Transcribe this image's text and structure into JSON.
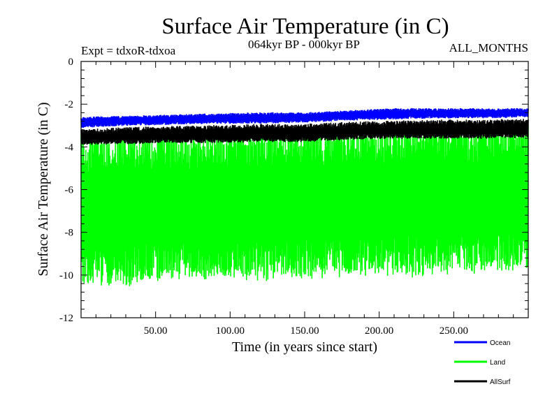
{
  "chart_data": {
    "type": "line",
    "title": "Surface Air Temperature (in C)",
    "subtitle_left": "Expt = tdxoR-tdxoa",
    "subtitle_center": "064kyr BP - 000kyr BP",
    "subtitle_right": "ALL_MONTHS",
    "xlabel": "Time (in years since start)",
    "ylabel": "Surface Air Temperature (in C)",
    "xlim": [
      0,
      300
    ],
    "ylim": [
      -12,
      0
    ],
    "x_ticks": [
      50,
      100,
      150,
      200,
      250
    ],
    "x_tick_labels": [
      "50.00",
      "100.00",
      "150.00",
      "200.00",
      "250.00"
    ],
    "y_ticks": [
      0,
      -2,
      -4,
      -6,
      -8,
      -10,
      -12
    ],
    "y_tick_labels": [
      "0",
      "-2",
      "-4",
      "-6",
      "-8",
      "-10",
      "-12"
    ],
    "grid": false,
    "legend_position": "bottom-right, below plot",
    "series": [
      {
        "name": "Land",
        "color": "#00ff00",
        "upper_x": [
          0,
          30,
          60,
          90,
          120,
          150,
          180,
          210,
          240,
          270,
          300
        ],
        "upper_y": [
          -3.6,
          -3.5,
          -3.5,
          -3.4,
          -3.3,
          -3.3,
          -3.2,
          -3.2,
          -3.1,
          -3.1,
          -3.1
        ],
        "lower_x": [
          0,
          30,
          60,
          90,
          120,
          150,
          180,
          210,
          240,
          270,
          300
        ],
        "lower_y": [
          -10.3,
          -10.3,
          -10.1,
          -10.0,
          -10.1,
          -10.0,
          -9.9,
          -9.9,
          -9.8,
          -9.7,
          -9.6
        ]
      },
      {
        "name": "AllSurf",
        "color": "#000000",
        "upper_x": [
          0,
          30,
          60,
          90,
          120,
          150,
          180,
          210,
          240,
          270,
          300
        ],
        "upper_y": [
          -3.2,
          -3.1,
          -3.05,
          -3.0,
          -2.95,
          -2.95,
          -2.85,
          -2.8,
          -2.75,
          -2.75,
          -2.7
        ],
        "lower_x": [
          0,
          30,
          60,
          90,
          120,
          150,
          180,
          210,
          240,
          270,
          300
        ],
        "lower_y": [
          -3.9,
          -3.85,
          -3.8,
          -3.8,
          -3.75,
          -3.75,
          -3.65,
          -3.6,
          -3.6,
          -3.6,
          -3.55
        ]
      },
      {
        "name": "Ocean",
        "color": "#0000ff",
        "upper_x": [
          0,
          30,
          60,
          90,
          120,
          150,
          180,
          210,
          240,
          270,
          300
        ],
        "upper_y": [
          -2.6,
          -2.55,
          -2.5,
          -2.45,
          -2.4,
          -2.4,
          -2.3,
          -2.2,
          -2.2,
          -2.2,
          -2.2
        ],
        "lower_x": [
          0,
          30,
          60,
          90,
          120,
          150,
          180,
          210,
          240,
          270,
          300
        ],
        "lower_y": [
          -3.1,
          -3.0,
          -2.95,
          -2.9,
          -2.9,
          -2.85,
          -2.75,
          -2.7,
          -2.65,
          -2.65,
          -2.6
        ]
      }
    ],
    "legend": [
      {
        "name": "Ocean",
        "color": "#0000ff"
      },
      {
        "name": "Land",
        "color": "#00ff00"
      },
      {
        "name": "AllSurf",
        "color": "#000000"
      }
    ]
  }
}
